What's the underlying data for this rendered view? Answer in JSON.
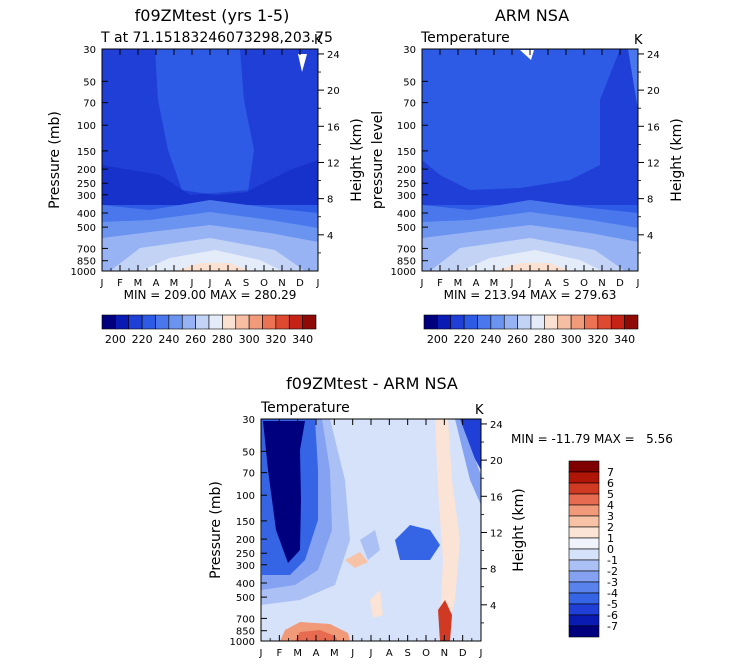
{
  "colors": {
    "abs_scale": [
      "#00007f",
      "#0a1bb4",
      "#1f3fd7",
      "#2e5be6",
      "#4a78ec",
      "#6b94f0",
      "#98b3f3",
      "#c3d3f6",
      "#e4ecfa",
      "#fbe1d2",
      "#f6bea2",
      "#f29b7a",
      "#eb7253",
      "#de4a31",
      "#c42316",
      "#8f0a07"
    ],
    "diff_scale": [
      "#00007f",
      "#0a1bb4",
      "#1f3fd7",
      "#3565e4",
      "#5a82ec",
      "#84a2f1",
      "#abc1f5",
      "#d6e2f9",
      "#f0f3fc",
      "#fbe3d5",
      "#f8c2a7",
      "#f09a7a",
      "#e66b50",
      "#d03a22",
      "#b01607",
      "#7f0000"
    ]
  },
  "chart_data": [
    {
      "type": "heatmap",
      "title": "f09ZMtest (yrs 1-5)",
      "subtitle": "T at 71.15183246073298,203.75",
      "units_label": "K",
      "xlabel": "",
      "ylabel": "Pressure (mb)",
      "ylabel_right": "Height (km)",
      "x_ticks": [
        "J",
        "F",
        "M",
        "A",
        "M",
        "J",
        "J",
        "A",
        "S",
        "O",
        "N",
        "D",
        "J"
      ],
      "y_ticks": [
        "30",
        "50",
        "70",
        "100",
        "150",
        "200",
        "250",
        "300",
        "400",
        "500",
        "700",
        "850",
        "1000"
      ],
      "y_ticks_right": [
        "24",
        "20",
        "16",
        "12",
        "8",
        "4"
      ],
      "stats": "MIN = 209.00 MAX = 280.29",
      "colorbar_labels": [
        "200",
        "220",
        "240",
        "260",
        "280",
        "300",
        "320",
        "340"
      ],
      "levels": [
        200,
        210,
        220,
        230,
        240,
        250,
        260,
        270,
        280,
        290,
        300,
        310,
        320,
        330,
        340
      ],
      "ylim_mb": [
        1000,
        30
      ],
      "min": 209.0,
      "max": 280.29
    },
    {
      "type": "heatmap",
      "title": "ARM NSA",
      "subtitle": "Temperature",
      "units_label": "K",
      "xlabel": "",
      "ylabel": "pressure level",
      "ylabel_right": "Height (km)",
      "x_ticks": [
        "J",
        "F",
        "M",
        "A",
        "M",
        "J",
        "J",
        "A",
        "S",
        "O",
        "N",
        "D",
        "J"
      ],
      "y_ticks": [
        "30",
        "50",
        "70",
        "100",
        "150",
        "200",
        "250",
        "300",
        "400",
        "500",
        "700",
        "850",
        "1000"
      ],
      "y_ticks_right": [
        "24",
        "20",
        "16",
        "12",
        "8",
        "4"
      ],
      "stats": "MIN = 213.94 MAX = 279.63",
      "colorbar_labels": [
        "200",
        "220",
        "240",
        "260",
        "280",
        "300",
        "320",
        "340"
      ],
      "levels": [
        200,
        210,
        220,
        230,
        240,
        250,
        260,
        270,
        280,
        290,
        300,
        310,
        320,
        330,
        340
      ],
      "ylim_mb": [
        1000,
        30
      ],
      "min": 213.94,
      "max": 279.63
    },
    {
      "type": "heatmap",
      "title": "f09ZMtest - ARM NSA",
      "subtitle": "Temperature",
      "units_label": "K",
      "xlabel": "",
      "ylabel": "Pressure (mb)",
      "ylabel_right": "Height (km)",
      "x_ticks": [
        "J",
        "F",
        "M",
        "A",
        "M",
        "J",
        "J",
        "A",
        "S",
        "O",
        "N",
        "D",
        "J"
      ],
      "y_ticks": [
        "30",
        "50",
        "70",
        "100",
        "150",
        "200",
        "250",
        "300",
        "400",
        "500",
        "700",
        "850",
        "1000"
      ],
      "y_ticks_right": [
        "24",
        "20",
        "16",
        "12",
        "8",
        "4"
      ],
      "stats": "MIN = -11.79 MAX =   5.56",
      "colorbar_labels": [
        "7",
        "6",
        "5",
        "4",
        "3",
        "2",
        "1",
        "0",
        "-1",
        "-2",
        "-3",
        "-4",
        "-5",
        "-6",
        "-7"
      ],
      "levels": [
        -7,
        -6,
        -5,
        -4,
        -3,
        -2,
        -1,
        0,
        1,
        2,
        3,
        4,
        5,
        6,
        7
      ],
      "ylim_mb": [
        1000,
        30
      ],
      "min": -11.79,
      "max": 5.56
    }
  ]
}
